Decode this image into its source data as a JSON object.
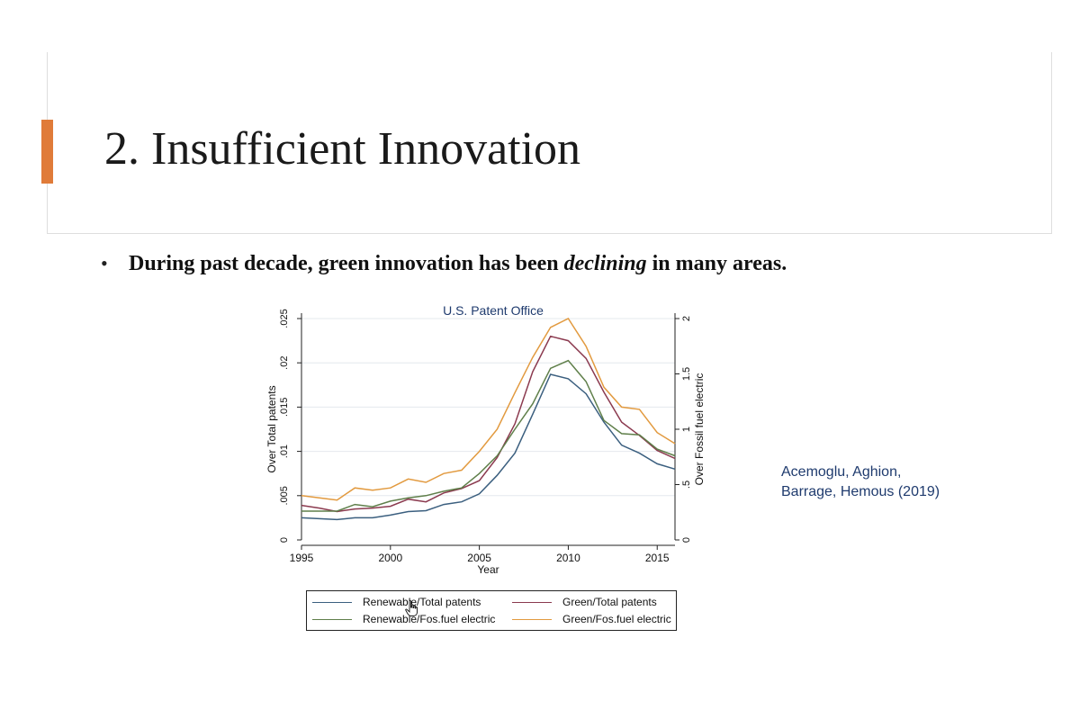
{
  "slide": {
    "title": "2. Insufficient Innovation",
    "bullet_pre": "During past decade, green innovation has been ",
    "bullet_em": "declining",
    "bullet_post": " in many areas.",
    "citation_line1": "Acemoglu, Aghion,",
    "citation_line2": "Barrage, Hemous (2019)",
    "accent_color": "#e07b39"
  },
  "chart_data": {
    "type": "line",
    "title": "U.S. Patent Office",
    "xlabel": "Year",
    "ylabel_left": "Over Total patents",
    "ylabel_right": "Over Fossil fuel electric",
    "xlim": [
      1995,
      2016
    ],
    "ylim_left": [
      0,
      0.025
    ],
    "ylim_right": [
      0,
      2
    ],
    "x_ticks": [
      "1995",
      "2000",
      "2005",
      "2010",
      "2015"
    ],
    "y_left_ticks": [
      "0",
      ".005",
      ".01",
      ".015",
      ".02",
      ".025"
    ],
    "y_right_ticks": [
      "0",
      ".5",
      "1",
      "1.5",
      "2"
    ],
    "grid": true,
    "legend_position": "bottom",
    "x": [
      1995,
      1996,
      1997,
      1998,
      1999,
      2000,
      2001,
      2002,
      2003,
      2004,
      2005,
      2006,
      2007,
      2008,
      2009,
      2010,
      2011,
      2012,
      2013,
      2014,
      2015,
      2016
    ],
    "series": [
      {
        "name": "Renewable/Total patents",
        "axis": "left",
        "color": "#3b5f7f",
        "values": [
          0.0025,
          0.0024,
          0.0023,
          0.0025,
          0.0025,
          0.0028,
          0.0032,
          0.0033,
          0.004,
          0.0043,
          0.0052,
          0.0073,
          0.0098,
          0.0142,
          0.0187,
          0.0182,
          0.0165,
          0.0133,
          0.0107,
          0.0098,
          0.0086,
          0.008
        ]
      },
      {
        "name": "Green/Total patents",
        "axis": "left",
        "color": "#8b3a4f",
        "values": [
          0.0039,
          0.0036,
          0.0032,
          0.0035,
          0.0036,
          0.0038,
          0.0046,
          0.0043,
          0.0053,
          0.0058,
          0.0067,
          0.0093,
          0.0131,
          0.019,
          0.023,
          0.0225,
          0.0205,
          0.0167,
          0.0133,
          0.0118,
          0.0101,
          0.0092
        ]
      },
      {
        "name": "Renewable/Fos.fuel electric",
        "axis": "right",
        "color": "#5f7f4a",
        "values": [
          0.26,
          0.26,
          0.26,
          0.32,
          0.3,
          0.35,
          0.38,
          0.4,
          0.44,
          0.47,
          0.6,
          0.76,
          1.0,
          1.23,
          1.55,
          1.62,
          1.43,
          1.08,
          0.96,
          0.95,
          0.82,
          0.76
        ]
      },
      {
        "name": "Green/Fos.fuel electric",
        "axis": "right",
        "color": "#e29a3f",
        "values": [
          0.4,
          0.38,
          0.36,
          0.47,
          0.45,
          0.47,
          0.55,
          0.52,
          0.6,
          0.63,
          0.8,
          1.0,
          1.33,
          1.65,
          1.92,
          2.0,
          1.75,
          1.38,
          1.2,
          1.18,
          0.97,
          0.87
        ]
      }
    ]
  }
}
